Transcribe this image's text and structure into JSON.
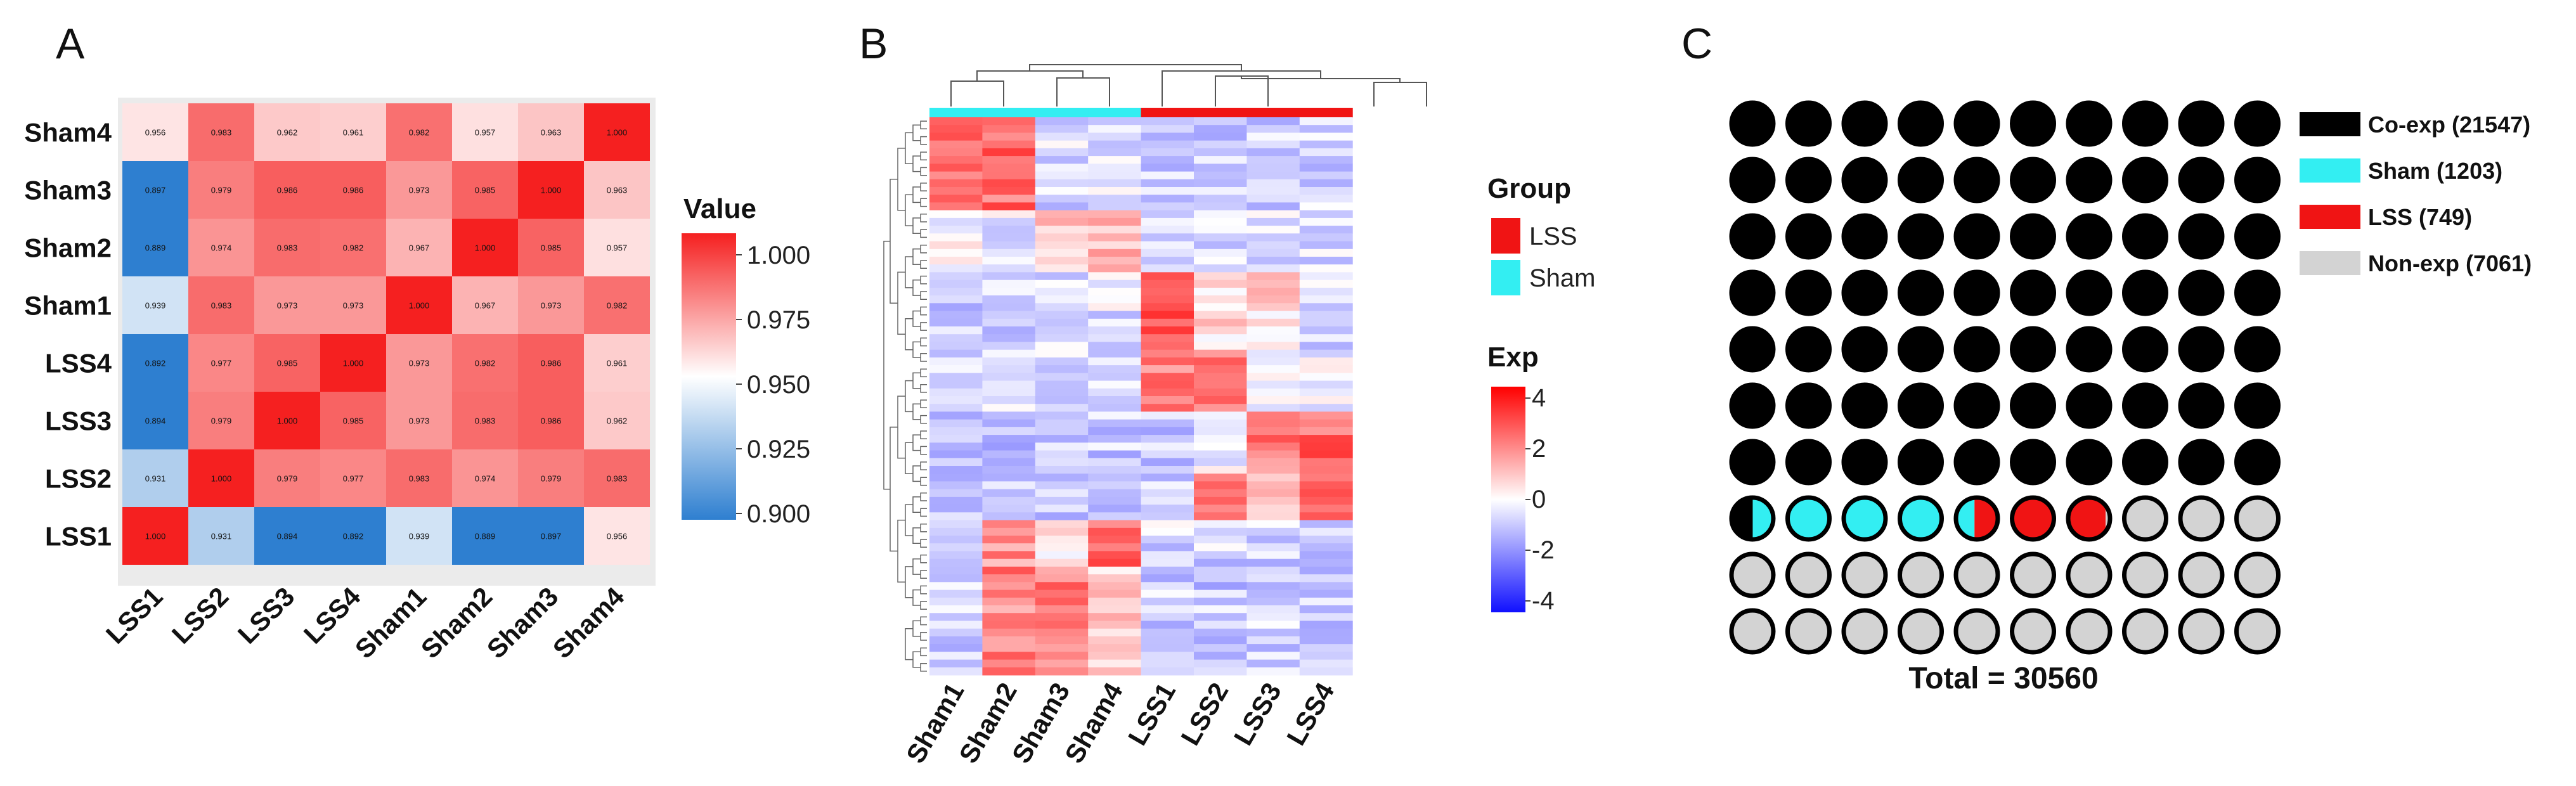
{
  "colors": {
    "heat_low": "#2e7fd0",
    "heat_mid": "#ffffff",
    "heat_high": "#f52020",
    "exp_low": "#1010ff",
    "exp_mid": "#ffffff",
    "exp_high": "#ff0000",
    "group_sham": "#33eef2",
    "group_lss": "#f01414",
    "coexp": "#000000",
    "sham": "#33eef2",
    "lss": "#f01414",
    "nonexp": "#d3d3d3"
  },
  "chart_data": [
    {
      "panel": "A",
      "type": "heatmap",
      "title": "",
      "x_labels": [
        "LSS1",
        "LSS2",
        "LSS3",
        "LSS4",
        "Sham1",
        "Sham2",
        "Sham3",
        "Sham4"
      ],
      "y_labels_top_to_bottom": [
        "Sham4",
        "Sham3",
        "Sham2",
        "Sham1",
        "LSS4",
        "LSS3",
        "LSS2",
        "LSS1"
      ],
      "values": [
        [
          "0.956",
          "0.983",
          "0.962",
          "0.961",
          "0.982",
          "0.957",
          "0.963",
          "1.000"
        ],
        [
          "0.897",
          "0.979",
          "0.986",
          "0.986",
          "0.973",
          "0.985",
          "1.000",
          "0.963"
        ],
        [
          "0.889",
          "0.974",
          "0.983",
          "0.982",
          "0.967",
          "1.000",
          "0.985",
          "0.957"
        ],
        [
          "0.939",
          "0.983",
          "0.973",
          "0.973",
          "1.000",
          "0.967",
          "0.973",
          "0.982"
        ],
        [
          "0.892",
          "0.977",
          "0.985",
          "1.000",
          "0.973",
          "0.982",
          "0.986",
          "0.961"
        ],
        [
          "0.894",
          "0.979",
          "1.000",
          "0.985",
          "0.973",
          "0.983",
          "0.986",
          "0.962"
        ],
        [
          "0.931",
          "1.000",
          "0.979",
          "0.977",
          "0.983",
          "0.974",
          "0.979",
          "0.983"
        ],
        [
          "1.000",
          "0.931",
          "0.894",
          "0.892",
          "0.939",
          "0.889",
          "0.897",
          "0.956"
        ]
      ],
      "color_range": [
        0.9,
        1.0
      ],
      "legend_title": "Value",
      "legend_ticks": [
        "1.000",
        "0.975",
        "0.950",
        "0.925",
        "0.900"
      ]
    },
    {
      "panel": "B",
      "type": "heatmap",
      "columns": [
        "Sham1",
        "Sham2",
        "Sham3",
        "Sham4",
        "LSS1",
        "LSS2",
        "LSS3",
        "LSS4"
      ],
      "column_groups": [
        "Sham",
        "Sham",
        "Sham",
        "Sham",
        "LSS",
        "LSS",
        "LSS",
        "LSS"
      ],
      "group_legend_title": "Group",
      "group_legend": [
        "LSS",
        "Sham"
      ],
      "exp_legend_title": "Exp",
      "exp_ticks": [
        "4",
        "2",
        "0",
        "-2",
        "-4"
      ],
      "exp_range": [
        -4,
        4
      ],
      "row_blocks": [
        {
          "rows": 12,
          "values": [
            2.5,
            2.3,
            -0.6,
            -0.6,
            -0.9,
            -0.8,
            -0.8,
            -0.8
          ]
        },
        {
          "rows": 8,
          "values": [
            0.1,
            -0.3,
            1.1,
            1.3,
            -0.4,
            -0.6,
            -0.5,
            -0.6
          ]
        },
        {
          "rows": 10,
          "values": [
            -0.8,
            -0.9,
            -0.6,
            -0.5,
            2.5,
            0.6,
            0.6,
            -0.6
          ]
        },
        {
          "rows": 8,
          "values": [
            -0.6,
            -0.5,
            -0.5,
            -0.4,
            1.9,
            1.9,
            -0.2,
            -0.4
          ]
        },
        {
          "rows": 8,
          "values": [
            -0.8,
            -0.9,
            -0.8,
            -0.9,
            -0.8,
            -0.4,
            2.0,
            2.4
          ]
        },
        {
          "rows": 6,
          "values": [
            -0.8,
            -0.8,
            -0.8,
            -0.8,
            -0.8,
            2.2,
            1.4,
            2.2
          ]
        },
        {
          "rows": 6,
          "values": [
            -0.5,
            1.7,
            0.2,
            2.4,
            -0.6,
            -0.7,
            -0.7,
            -0.8
          ]
        },
        {
          "rows": 14,
          "values": [
            -0.8,
            1.9,
            2.1,
            0.9,
            -0.8,
            -0.9,
            -0.8,
            -0.9
          ]
        }
      ]
    },
    {
      "panel": "C",
      "type": "waffle",
      "grid": [
        10,
        10
      ],
      "categories": [
        {
          "name": "Co-exp",
          "count": 21547,
          "label": "Co-exp (21547)"
        },
        {
          "name": "Sham",
          "count": 1203,
          "label": "Sham (1203)"
        },
        {
          "name": "LSS",
          "count": 749,
          "label": "LSS (749)"
        },
        {
          "name": "Non-exp",
          "count": 7061,
          "label": "Non-exp (7061)"
        }
      ],
      "total": 30560,
      "total_label": "Total = 30560"
    }
  ],
  "panel_labels": {
    "a": "A",
    "b": "B",
    "c": "C"
  }
}
